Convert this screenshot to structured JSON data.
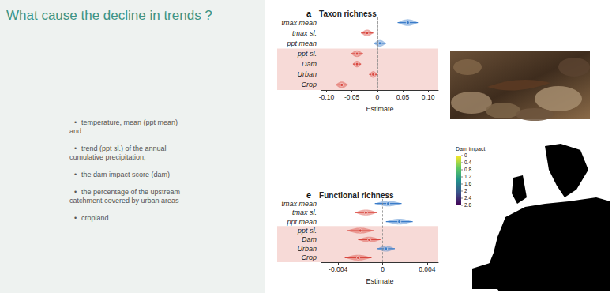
{
  "slide": {
    "title": "What cause the decline in trends ?",
    "bullets": [
      "temperature, mean (ppt mean) and",
      "trend (ppt sl.) of the annual cumulative precipitation,",
      "the dam impact score (dam)",
      "the percentage of the upstream catchment covered by urban areas",
      "cropland"
    ]
  },
  "chart_data": [
    {
      "type": "scatter",
      "label": "a",
      "title": "Taxon richness",
      "orientation": "horizontal",
      "categories": [
        "tmax mean",
        "tmax sl.",
        "ppt mean",
        "ppt sl.",
        "Dam",
        "Urban",
        "Crop"
      ],
      "values": [
        0.06,
        -0.02,
        0.005,
        -0.04,
        -0.04,
        -0.008,
        -0.07
      ],
      "error": [
        0.02,
        0.012,
        0.012,
        0.012,
        0.008,
        0.008,
        0.012
      ],
      "colors": [
        "#3a7cc9",
        "#d9473f",
        "#3a7cc9",
        "#d9473f",
        "#d9473f",
        "#d9473f",
        "#d9473f"
      ],
      "xlabel": "Estimate",
      "xlim": [
        -0.11,
        0.12
      ],
      "xticks": [
        {
          "value": -0.1,
          "label": "-0.10"
        },
        -0.05,
        0,
        0.05,
        {
          "value": 0.1,
          "label": "0.10"
        }
      ],
      "grid": false
    },
    {
      "type": "scatter",
      "label": "e",
      "title": "Functional richness",
      "orientation": "horizontal",
      "categories": [
        "tmax mean",
        "tmax sl.",
        "ppt mean",
        "ppt sl.",
        "Dam",
        "Urban",
        "Crop"
      ],
      "values": [
        0.0005,
        -0.0015,
        0.0015,
        -0.002,
        -0.0012,
        0.0003,
        -0.0022
      ],
      "error": [
        0.0012,
        0.001,
        0.0012,
        0.0012,
        0.001,
        0.0008,
        0.0012
      ],
      "colors": [
        "#3a7cc9",
        "#d9473f",
        "#3a7cc9",
        "#d9473f",
        "#d9473f",
        "#3a7cc9",
        "#d9473f"
      ],
      "xlabel": "Estimate",
      "xlim": [
        -0.0055,
        0.005
      ],
      "xticks": [
        -0.004,
        0,
        0.004
      ],
      "grid": false
    }
  ],
  "map": {
    "legend_title": "Dam impact",
    "colorbar_range": [
      0,
      2.8
    ],
    "colorbar_ticks": [
      0,
      0.4,
      0.8,
      1.2,
      1.6,
      2,
      2.4,
      2.8
    ]
  }
}
